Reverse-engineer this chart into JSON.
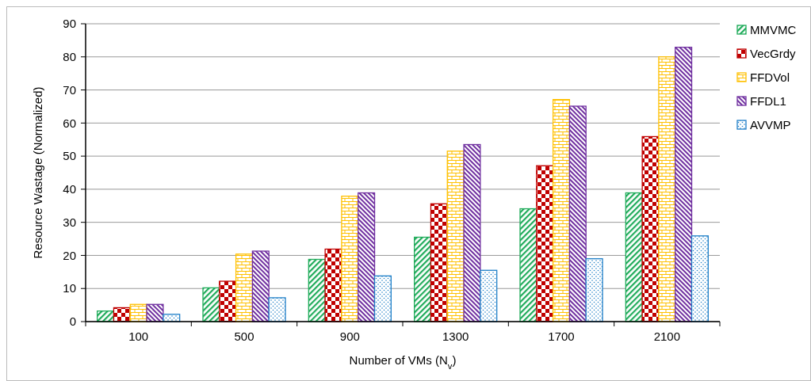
{
  "chart_data": {
    "type": "bar",
    "xlabel": "Number of  VMs (N$_{v}$)",
    "ylabel": "Resource Wastage (Normalized)",
    "categories": [
      "100",
      "500",
      "900",
      "1300",
      "1700",
      "2100"
    ],
    "series": [
      {
        "name": "MMVMC",
        "color": "#1fab5a",
        "values": [
          3.2,
          10.2,
          18.8,
          25.5,
          34.1,
          38.9
        ]
      },
      {
        "name": "VecGrdy",
        "color": "#c00000",
        "values": [
          4.2,
          12.2,
          21.9,
          35.6,
          47.1,
          55.9
        ]
      },
      {
        "name": "FFDVol",
        "color": "#ffc000",
        "values": [
          5.2,
          20.4,
          37.9,
          51.5,
          67.1,
          80.0
        ]
      },
      {
        "name": "FFDL1",
        "color": "#7030a0",
        "values": [
          5.2,
          21.3,
          38.9,
          53.5,
          65.1,
          82.9
        ]
      },
      {
        "name": "AVVMP",
        "color": "#1f7fc8",
        "values": [
          2.2,
          7.2,
          13.8,
          15.5,
          19.0,
          25.9
        ]
      }
    ],
    "ylim": [
      0,
      90
    ],
    "yticks": [
      0,
      10,
      20,
      30,
      40,
      50,
      60,
      70,
      80,
      90
    ],
    "grid": "y",
    "legend": "right"
  }
}
